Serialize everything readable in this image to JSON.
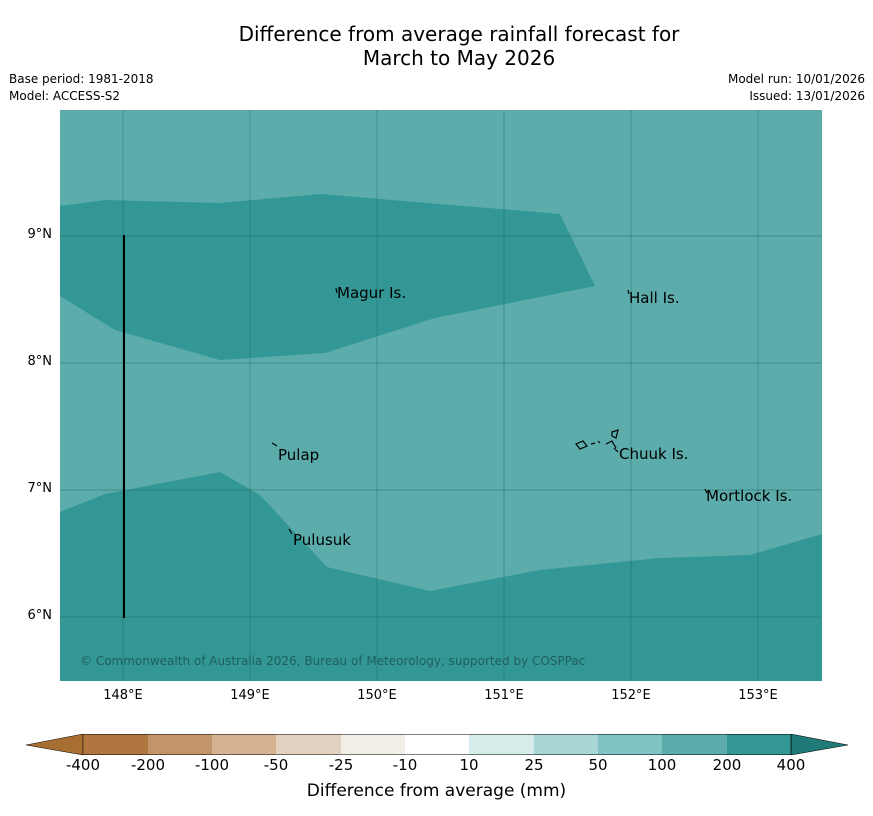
{
  "title_line1": "Difference from average rainfall forecast for",
  "title_line2": "March to May 2026",
  "meta_left": {
    "base_period": "Base period: 1981-2018",
    "model": "Model: ACCESS-S2"
  },
  "meta_right": {
    "model_run": "Model run: 10/01/2026",
    "issued": "Issued: 13/01/2026"
  },
  "axes": {
    "lat_labels": [
      "9°N",
      "8°N",
      "7°N",
      "6°N"
    ],
    "lon_labels": [
      "148°E",
      "149°E",
      "150°E",
      "151°E",
      "152°E",
      "153°E"
    ]
  },
  "places": [
    "Magur Is.",
    "Hall Is.",
    "Pulap",
    "Chuuk Is.",
    "Mortlock Is.",
    "Pulusuk"
  ],
  "copyright": "© Commonwealth of Australia 2026, Bureau of Meteorology, supported by COSPPac",
  "legend": {
    "title": "Difference from average (mm)",
    "ticks": [
      "-400",
      "-200",
      "-100",
      "-50",
      "-25",
      "-10",
      "10",
      "25",
      "50",
      "100",
      "200",
      "400"
    ],
    "colors": [
      "#a86f33",
      "#b07640",
      "#c29469",
      "#d5b392",
      "#e4d2c0",
      "#f1ede7",
      "#ffffff",
      "#d6eceb",
      "#a9d7d6",
      "#7fc3c2",
      "#5bacab",
      "#339895",
      "#1f7a78"
    ]
  },
  "map_colors": {
    "band_100_200": "#5bacab",
    "band_200_400": "#339895"
  }
}
